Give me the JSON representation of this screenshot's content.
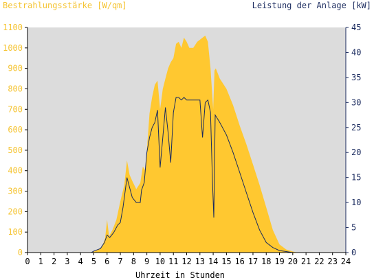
{
  "colors": {
    "left_axis_text": "#f5c433",
    "right_axis_text": "#1a2a5e",
    "plot_bg": "#dcdcdc",
    "area_fill": "#ffc830",
    "line": "#1a2a5e",
    "axis_text": "#000000"
  },
  "chart_data": {
    "type": "area",
    "left_axis_title": "Bestrahlungsstärke [W/qm]",
    "right_axis_title": "Leistung der Anlage [kW]",
    "xlabel": "Uhrzeit in Stunden",
    "xlim": [
      0,
      24
    ],
    "y_left_lim": [
      0,
      1100
    ],
    "y_right_lim": [
      0,
      45
    ],
    "x_ticks": [
      "0",
      "1",
      "2",
      "3",
      "4",
      "5",
      "6",
      "7",
      "8",
      "9",
      "10",
      "11",
      "12",
      "13",
      "14",
      "15",
      "16",
      "17",
      "18",
      "19",
      "20",
      "21",
      "22",
      "23",
      "24"
    ],
    "y_left_ticks": [
      "0",
      "100",
      "200",
      "300",
      "400",
      "500",
      "600",
      "700",
      "800",
      "900",
      "1000",
      "1100"
    ],
    "y_right_ticks": [
      "0",
      "5",
      "10",
      "15",
      "20",
      "25",
      "30",
      "35",
      "40",
      "45"
    ],
    "series": [
      {
        "name": "Bestrahlungsstärke [W/qm]",
        "axis": "left",
        "style": "area",
        "points": [
          [
            0,
            0
          ],
          [
            4.8,
            0
          ],
          [
            5.0,
            5
          ],
          [
            5.3,
            12
          ],
          [
            5.6,
            25
          ],
          [
            5.85,
            70
          ],
          [
            6.0,
            160
          ],
          [
            6.15,
            80
          ],
          [
            6.4,
            110
          ],
          [
            6.7,
            160
          ],
          [
            7.0,
            250
          ],
          [
            7.3,
            330
          ],
          [
            7.5,
            450
          ],
          [
            7.7,
            380
          ],
          [
            7.9,
            350
          ],
          [
            8.2,
            310
          ],
          [
            8.5,
            340
          ],
          [
            8.7,
            420
          ],
          [
            8.9,
            400
          ],
          [
            9.0,
            500
          ],
          [
            9.2,
            680
          ],
          [
            9.4,
            760
          ],
          [
            9.6,
            820
          ],
          [
            9.8,
            840
          ],
          [
            10.0,
            700
          ],
          [
            10.2,
            800
          ],
          [
            10.4,
            850
          ],
          [
            10.6,
            900
          ],
          [
            10.8,
            930
          ],
          [
            11.0,
            950
          ],
          [
            11.2,
            1020
          ],
          [
            11.4,
            1030
          ],
          [
            11.6,
            1000
          ],
          [
            11.8,
            1050
          ],
          [
            12.0,
            1030
          ],
          [
            12.2,
            1000
          ],
          [
            12.5,
            1000
          ],
          [
            12.8,
            1030
          ],
          [
            13.0,
            1040
          ],
          [
            13.2,
            1050
          ],
          [
            13.4,
            1060
          ],
          [
            13.6,
            1030
          ],
          [
            13.8,
            900
          ],
          [
            14.0,
            700
          ],
          [
            14.1,
            890
          ],
          [
            14.2,
            900
          ],
          [
            14.5,
            850
          ],
          [
            15.0,
            800
          ],
          [
            15.5,
            720
          ],
          [
            16.0,
            620
          ],
          [
            16.5,
            530
          ],
          [
            17.0,
            430
          ],
          [
            17.5,
            330
          ],
          [
            18.0,
            220
          ],
          [
            18.5,
            110
          ],
          [
            19.0,
            40
          ],
          [
            19.5,
            15
          ],
          [
            20.0,
            5
          ],
          [
            20.4,
            0
          ],
          [
            24,
            0
          ]
        ]
      },
      {
        "name": "Leistung der Anlage [kW]",
        "axis": "right",
        "style": "line",
        "points": [
          [
            0,
            0
          ],
          [
            4.8,
            0
          ],
          [
            5.0,
            0.3
          ],
          [
            5.5,
            0.8
          ],
          [
            5.8,
            2
          ],
          [
            6.0,
            3.5
          ],
          [
            6.2,
            3
          ],
          [
            6.5,
            4
          ],
          [
            6.8,
            5.5
          ],
          [
            7.0,
            6
          ],
          [
            7.2,
            9
          ],
          [
            7.5,
            15
          ],
          [
            7.7,
            13
          ],
          [
            7.9,
            11
          ],
          [
            8.2,
            10
          ],
          [
            8.5,
            10
          ],
          [
            8.6,
            12.5
          ],
          [
            8.8,
            14
          ],
          [
            9.0,
            20
          ],
          [
            9.2,
            23
          ],
          [
            9.4,
            25
          ],
          [
            9.6,
            26
          ],
          [
            9.8,
            28.5
          ],
          [
            10.0,
            17
          ],
          [
            10.2,
            23
          ],
          [
            10.4,
            29
          ],
          [
            10.6,
            24
          ],
          [
            10.8,
            18
          ],
          [
            11.0,
            28
          ],
          [
            11.2,
            31
          ],
          [
            11.4,
            31
          ],
          [
            11.6,
            30.5
          ],
          [
            11.8,
            31
          ],
          [
            12.0,
            30.5
          ],
          [
            12.5,
            30.5
          ],
          [
            13.0,
            30.5
          ],
          [
            13.2,
            23
          ],
          [
            13.4,
            30
          ],
          [
            13.6,
            30.5
          ],
          [
            13.8,
            28
          ],
          [
            13.95,
            14
          ],
          [
            14.05,
            7
          ],
          [
            14.15,
            27.5
          ],
          [
            14.5,
            26
          ],
          [
            15.0,
            23.5
          ],
          [
            15.5,
            20
          ],
          [
            16.0,
            16
          ],
          [
            16.5,
            12
          ],
          [
            17.0,
            8
          ],
          [
            17.5,
            4.5
          ],
          [
            18.0,
            2
          ],
          [
            18.5,
            1
          ],
          [
            19.0,
            0.4
          ],
          [
            19.5,
            0.2
          ],
          [
            20.0,
            0
          ],
          [
            24,
            0
          ]
        ]
      }
    ]
  }
}
